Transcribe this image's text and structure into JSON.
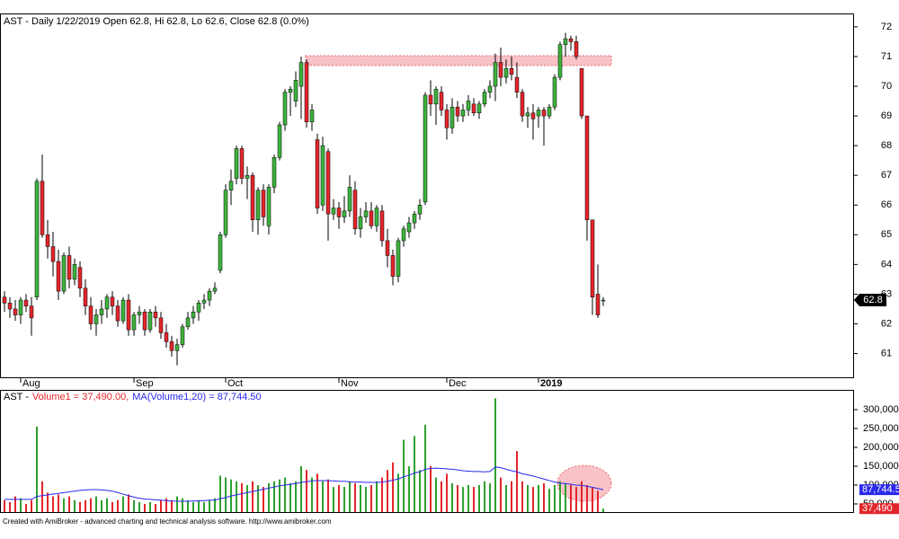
{
  "chart_data": [
    {
      "type": "candlestick",
      "title": "AST - Daily 1/22/2019 Open 62.8, Hi 62.8, Lo 62.6, Close 62.8 (0.0%)",
      "categories": [
        null,
        null,
        null,
        "Aug",
        null,
        null,
        null,
        null,
        null,
        null,
        null,
        null,
        null,
        null,
        null,
        null,
        null,
        null,
        null,
        null,
        null,
        null,
        null,
        null,
        "Sep",
        null,
        null,
        null,
        null,
        null,
        null,
        null,
        null,
        null,
        null,
        null,
        null,
        null,
        null,
        null,
        null,
        "Oct",
        null,
        null,
        null,
        null,
        null,
        null,
        null,
        null,
        null,
        null,
        null,
        null,
        null,
        null,
        null,
        null,
        null,
        null,
        null,
        null,
        "Nov",
        null,
        null,
        null,
        null,
        null,
        null,
        null,
        null,
        null,
        null,
        null,
        null,
        null,
        null,
        null,
        null,
        null,
        null,
        null,
        "Dec",
        null,
        null,
        null,
        null,
        null,
        null,
        null,
        null,
        null,
        null,
        null,
        null,
        null,
        null,
        null,
        null,
        "2019",
        null,
        null,
        null,
        null,
        null,
        null,
        null,
        null,
        null,
        null,
        null,
        null
      ],
      "open": [
        62.9,
        62.7,
        62.5,
        62.3,
        62.8,
        62.6,
        62.9,
        66.8,
        65.0,
        64.6,
        64.1,
        63.1,
        64.3,
        63.5,
        63.9,
        63.2,
        62.6,
        62.0,
        62.3,
        62.5,
        62.9,
        62.6,
        62.1,
        62.8,
        61.8,
        62.3,
        62.4,
        61.8,
        62.4,
        62.2,
        61.7,
        61.4,
        61.1,
        61.3,
        61.9,
        62.2,
        62.4,
        62.7,
        62.8,
        63.1,
        63.8,
        65.0,
        66.5,
        66.9,
        67.9,
        66.9,
        67.0,
        65.5,
        66.5,
        65.3,
        66.6,
        67.6,
        68.7,
        69.8,
        69.5,
        70.0,
        70.8,
        68.8,
        68.2,
        66.0,
        67.8,
        65.7,
        65.9,
        65.6,
        65.8,
        66.5,
        65.2,
        65.6,
        65.8,
        65.3,
        65.8,
        64.8,
        64.3,
        63.6,
        64.8,
        65.1,
        65.4,
        65.7,
        66.1,
        69.7,
        69.4,
        69.8,
        69.2,
        68.6,
        69.3,
        69.0,
        69.2,
        69.4,
        69.1,
        69.4,
        69.8,
        70.0,
        70.8,
        70.3,
        70.6,
        70.3,
        69.8,
        69.0,
        69.1,
        69.0,
        69.2,
        69.0,
        69.3,
        70.3,
        71.4,
        71.6,
        71.5,
        70.6,
        69.0,
        65.5,
        63.0,
        62.8
      ],
      "high": [
        63.1,
        62.9,
        62.8,
        62.9,
        63.0,
        62.9,
        66.9,
        67.7,
        65.5,
        65.1,
        64.5,
        64.4,
        64.6,
        64.2,
        64.1,
        63.5,
        62.9,
        62.5,
        62.8,
        63.0,
        63.1,
        62.8,
        62.9,
        63.0,
        62.4,
        62.6,
        62.5,
        62.5,
        62.6,
        62.4,
        62.0,
        61.6,
        61.5,
        62.0,
        62.4,
        62.6,
        62.8,
        63.0,
        63.2,
        63.4,
        65.1,
        66.7,
        67.2,
        68.0,
        68.0,
        67.3,
        67.1,
        66.6,
        66.7,
        66.7,
        67.7,
        68.8,
        69.9,
        70.0,
        70.5,
        71.0,
        70.9,
        69.4,
        68.4,
        68.3,
        67.9,
        66.2,
        66.1,
        66.3,
        67.0,
        66.8,
        65.9,
        66.1,
        66.1,
        66.0,
        66.0,
        65.2,
        64.5,
        64.9,
        65.3,
        65.6,
        65.8,
        66.2,
        69.8,
        70.2,
        70.0,
        70.0,
        69.4,
        69.6,
        69.5,
        69.4,
        69.7,
        69.6,
        69.5,
        69.9,
        70.2,
        71.1,
        71.3,
        70.9,
        71.0,
        70.8,
        69.9,
        69.3,
        69.4,
        69.3,
        69.3,
        69.4,
        70.4,
        71.5,
        71.8,
        71.7,
        71.7,
        70.6,
        69.0,
        65.5,
        64.0,
        62.9
      ],
      "low": [
        62.4,
        62.2,
        62.1,
        62.0,
        62.4,
        61.6,
        62.8,
        64.9,
        64.2,
        63.6,
        62.8,
        63.0,
        63.2,
        63.3,
        62.9,
        62.3,
        61.8,
        61.6,
        62.0,
        62.2,
        62.3,
        61.9,
        62.0,
        61.6,
        61.6,
        62.0,
        61.6,
        61.7,
        61.9,
        61.5,
        61.2,
        60.9,
        60.6,
        61.2,
        61.8,
        62.0,
        62.1,
        62.5,
        62.6,
        63.0,
        63.7,
        64.9,
        66.0,
        66.7,
        66.7,
        66.2,
        65.1,
        65.0,
        65.3,
        65.0,
        66.4,
        67.5,
        68.5,
        69.0,
        69.3,
        68.9,
        68.6,
        68.5,
        65.7,
        65.8,
        64.8,
        65.5,
        65.2,
        65.4,
        65.6,
        65.0,
        64.9,
        65.4,
        65.2,
        65.1,
        64.6,
        63.9,
        63.3,
        63.4,
        64.6,
        64.9,
        65.2,
        65.5,
        66.0,
        69.0,
        68.7,
        69.0,
        68.2,
        68.4,
        68.8,
        68.8,
        69.0,
        69.0,
        68.9,
        69.3,
        69.6,
        69.5,
        70.0,
        70.1,
        70.2,
        69.6,
        68.8,
        68.6,
        68.2,
        68.6,
        68.0,
        68.9,
        69.2,
        70.2,
        71.0,
        71.2,
        70.9,
        68.9,
        64.8,
        62.3,
        62.2,
        62.6
      ],
      "close": [
        62.7,
        62.5,
        62.3,
        62.8,
        62.6,
        62.2,
        66.8,
        65.0,
        64.6,
        64.1,
        63.1,
        64.3,
        63.5,
        64.0,
        63.2,
        62.6,
        62.0,
        62.3,
        62.5,
        62.9,
        62.6,
        62.1,
        62.8,
        61.8,
        62.3,
        62.4,
        61.8,
        62.4,
        62.2,
        61.7,
        61.4,
        61.1,
        61.3,
        61.9,
        62.2,
        62.4,
        62.7,
        62.8,
        63.1,
        63.2,
        65.0,
        66.5,
        66.8,
        67.9,
        66.9,
        67.0,
        65.5,
        66.5,
        65.6,
        66.6,
        67.6,
        68.7,
        69.8,
        69.9,
        70.2,
        70.8,
        68.8,
        69.2,
        65.9,
        68.0,
        65.7,
        65.9,
        65.6,
        65.8,
        66.6,
        65.2,
        65.6,
        65.8,
        65.3,
        65.9,
        64.8,
        64.3,
        63.6,
        64.8,
        65.2,
        65.4,
        65.7,
        66.0,
        69.7,
        69.4,
        69.9,
        69.2,
        68.6,
        69.3,
        69.0,
        69.2,
        69.5,
        69.1,
        69.4,
        69.8,
        70.0,
        70.8,
        70.3,
        70.6,
        70.4,
        69.8,
        69.0,
        69.1,
        68.9,
        69.2,
        69.0,
        69.3,
        70.3,
        71.4,
        71.6,
        71.5,
        71.0,
        69.0,
        65.5,
        62.9,
        62.3,
        62.8
      ],
      "up_color": "#3cb33c",
      "down_color": "#e3262b",
      "last_label": "62.8",
      "ylim": [
        60.2,
        72.45
      ],
      "yticks": [
        61,
        62,
        63,
        64,
        65,
        66,
        67,
        68,
        69,
        70,
        71,
        72
      ]
    },
    {
      "type": "volume",
      "title": "AST -",
      "series": [
        {
          "name": "Volume1 = 37,490.00,",
          "color": "#e3262b",
          "up_color": "#2ea02e",
          "down_color": "#e3262b",
          "last_label": "37,490",
          "values": [
            60000,
            55000,
            70000,
            65000,
            50000,
            60000,
            255000,
            110000,
            80000,
            70000,
            75000,
            65000,
            70000,
            60000,
            55000,
            60000,
            65000,
            70000,
            60000,
            65000,
            55000,
            60000,
            70000,
            75000,
            60000,
            55000,
            50000,
            55000,
            50000,
            60000,
            65000,
            60000,
            70000,
            65000,
            60000,
            55000,
            60000,
            55000,
            60000,
            65000,
            125000,
            120000,
            115000,
            110000,
            105000,
            100000,
            110000,
            100000,
            95000,
            105000,
            110000,
            115000,
            120000,
            105000,
            110000,
            150000,
            140000,
            120000,
            130000,
            110000,
            115000,
            95000,
            100000,
            95000,
            110000,
            105000,
            100000,
            95000,
            100000,
            110000,
            120000,
            140000,
            160000,
            130000,
            220000,
            150000,
            230000,
            140000,
            260000,
            150000,
            120000,
            110000,
            130000,
            105000,
            100000,
            95000,
            100000,
            95000,
            100000,
            110000,
            105000,
            330000,
            120000,
            100000,
            110000,
            190000,
            110000,
            100000,
            95000,
            100000,
            105000,
            90000,
            100000,
            110000,
            105000,
            100000,
            95000,
            110000,
            100000,
            95000,
            85000,
            37490
          ]
        },
        {
          "name": "MA(Volume1,20) = 87,744.50",
          "color": "#2828ee",
          "last_label": "87,744.5",
          "values": [
            62000,
            62000,
            62000,
            62000,
            62000,
            62000,
            70000,
            72000,
            74000,
            76000,
            78000,
            80000,
            82000,
            84000,
            86000,
            87000,
            88000,
            88000,
            87000,
            86000,
            84000,
            80000,
            76000,
            72000,
            68000,
            65000,
            63000,
            62000,
            61000,
            60000,
            59000,
            58000,
            57000,
            57000,
            57000,
            58000,
            58000,
            59000,
            60000,
            60000,
            64000,
            67000,
            71000,
            74000,
            77000,
            80000,
            83000,
            86000,
            89000,
            92000,
            95000,
            98000,
            100000,
            102000,
            104000,
            107000,
            109000,
            111000,
            112000,
            112000,
            112000,
            111000,
            110000,
            110000,
            109000,
            108000,
            108000,
            107000,
            107000,
            107000,
            108000,
            110000,
            113000,
            116000,
            122000,
            126000,
            132000,
            135000,
            142000,
            144000,
            145000,
            144000,
            143000,
            142000,
            140000,
            138000,
            137000,
            136000,
            136000,
            135000,
            136000,
            148000,
            146000,
            142000,
            138000,
            135000,
            130000,
            127000,
            124000,
            120000,
            116000,
            112000,
            108000,
            105000,
            104000,
            102000,
            100000,
            99000,
            97000,
            94000,
            91000,
            87744.5
          ]
        }
      ],
      "ylim": [
        28500,
        350000
      ],
      "yticks": [
        {
          "value": 50000,
          "label": "50,000"
        },
        {
          "value": 100000,
          "label": "100,000"
        },
        {
          "value": 150000,
          "label": "150,000"
        },
        {
          "value": 200000,
          "label": "200,000"
        },
        {
          "value": 250000,
          "label": "250,000"
        },
        {
          "value": 300000,
          "label": "300,000"
        }
      ]
    }
  ],
  "footer": "Created with AmiBroker - advanced charting and technical analysis software. http://www.amibroker.com"
}
